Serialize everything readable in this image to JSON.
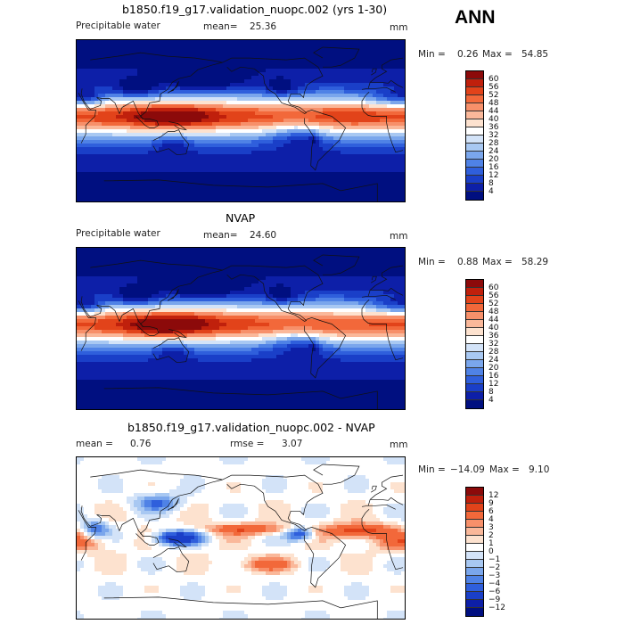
{
  "ann_label": "ANN",
  "chart_data": [
    {
      "type": "heatmap",
      "title": "b1850.f19_g17.validation_nuopc.002 (yrs 1-30)",
      "variable": "Precipitable water",
      "mean_label": "mean=",
      "mean": "25.36",
      "units": "mm",
      "min_label": "Min =",
      "min": "0.26",
      "max_label": "Max =",
      "max": "54.85",
      "colorbar_levels": [
        "60",
        "56",
        "52",
        "48",
        "44",
        "40",
        "36",
        "32",
        "28",
        "24",
        "20",
        "16",
        "12",
        "8",
        "4"
      ],
      "colorbar_colors": [
        "#8c0a0a",
        "#c0200c",
        "#e2431a",
        "#f2683a",
        "#f7906a",
        "#fab89a",
        "#fde2cf",
        "#ffffff",
        "#d3e3f8",
        "#a8c8f2",
        "#7aa6ec",
        "#4f82e6",
        "#2f5fdc",
        "#1a3fc8",
        "#0d1fa8",
        "#000f80"
      ],
      "field": "model"
    },
    {
      "type": "heatmap",
      "title": "NVAP",
      "variable": "Precipitable water",
      "mean_label": "mean=",
      "mean": "24.60",
      "units": "mm",
      "min_label": "Min =",
      "min": "0.88",
      "max_label": "Max =",
      "max": "58.29",
      "colorbar_levels": [
        "60",
        "56",
        "52",
        "48",
        "44",
        "40",
        "36",
        "32",
        "28",
        "24",
        "20",
        "16",
        "12",
        "8",
        "4"
      ],
      "colorbar_colors": [
        "#8c0a0a",
        "#c0200c",
        "#e2431a",
        "#f2683a",
        "#f7906a",
        "#fab89a",
        "#fde2cf",
        "#ffffff",
        "#d3e3f8",
        "#a8c8f2",
        "#7aa6ec",
        "#4f82e6",
        "#2f5fdc",
        "#1a3fc8",
        "#0d1fa8",
        "#000f80"
      ],
      "field": "obs"
    },
    {
      "type": "heatmap",
      "title": "b1850.f19_g17.validation_nuopc.002 - NVAP",
      "mean_label": "mean =",
      "mean": "0.76",
      "rmse_label": "rmse =",
      "rmse": "3.07",
      "units": "mm",
      "min_label": "Min =",
      "min": "−14.09",
      "max_label": "Max =",
      "max": "9.10",
      "colorbar_levels": [
        "12",
        "9",
        "6",
        "4",
        "3",
        "2",
        "1",
        "0",
        "−1",
        "−2",
        "−3",
        "−4",
        "−6",
        "−9",
        "−12"
      ],
      "colorbar_colors": [
        "#8c0a0a",
        "#c0200c",
        "#e2431a",
        "#f2683a",
        "#f7906a",
        "#fab89a",
        "#fde2cf",
        "#ffffff",
        "#d3e3f8",
        "#a8c8f2",
        "#7aa6ec",
        "#4f82e6",
        "#2f5fdc",
        "#1a3fc8",
        "#0d1fa8",
        "#000f80"
      ],
      "field": "diff"
    }
  ]
}
